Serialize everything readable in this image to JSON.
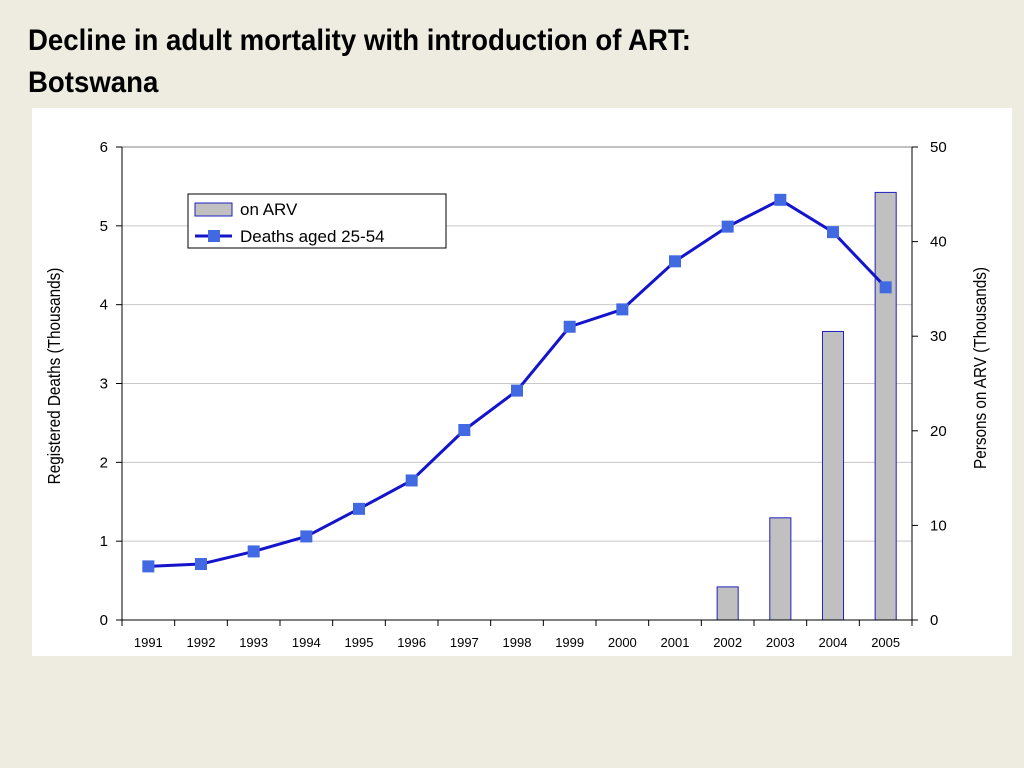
{
  "slide": {
    "title_line1": "Decline in adult mortality with introduction of ART:",
    "title_line2": "Botswana",
    "background": "#eeece1"
  },
  "chart_data": {
    "type": "bar+line",
    "categories": [
      "1991",
      "1992",
      "1993",
      "1994",
      "1995",
      "1996",
      "1997",
      "1998",
      "1999",
      "2000",
      "2001",
      "2002",
      "2003",
      "2004",
      "2005"
    ],
    "series": [
      {
        "name": "on ARV",
        "type": "bar",
        "axis": "right",
        "color": "#c0c0c0",
        "edge_color": "#1f1fbf",
        "values": [
          0,
          0,
          0,
          0,
          0,
          0,
          0,
          0,
          0,
          0,
          0,
          3.5,
          10.8,
          30.5,
          45.2
        ]
      },
      {
        "name": "Deaths aged 25-54",
        "type": "line",
        "axis": "left",
        "color": "#1414cc",
        "marker_color": "#4169e1",
        "values": [
          0.68,
          0.71,
          0.87,
          1.06,
          1.41,
          1.77,
          2.41,
          2.91,
          3.72,
          3.94,
          4.55,
          4.99,
          5.33,
          4.92,
          4.22
        ]
      }
    ],
    "ylabel_left": "Registered Deaths (Thousands)",
    "ylabel_right": "Persons on ARV (Thousands)",
    "ylim_left": [
      0,
      6
    ],
    "yticks_left": [
      "0",
      "1",
      "2",
      "3",
      "4",
      "5",
      "6"
    ],
    "ylim_right": [
      0,
      50
    ],
    "yticks_right": [
      "0",
      "10",
      "20",
      "30",
      "40",
      "50"
    ],
    "grid": true,
    "legend_position": "top-left"
  }
}
